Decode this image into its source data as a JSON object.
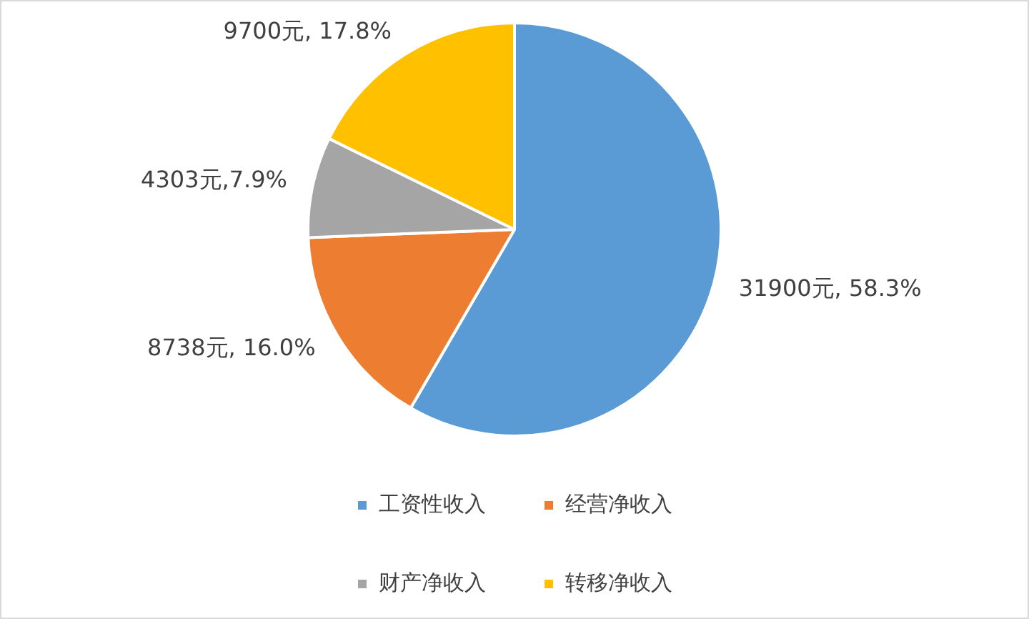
{
  "chart_data": {
    "type": "pie",
    "categories": [
      "工资性收入",
      "经营净收入",
      "财产净收入",
      "转移净收入"
    ],
    "values": [
      31900,
      8738,
      4303,
      9700
    ],
    "colors": [
      "#5b9bd5",
      "#ed7d31",
      "#a5a5a5",
      "#ffc000"
    ],
    "value_labels": [
      "31900元, 58.3%",
      "8738元, 16.0%",
      "4303元,7.9%",
      "9700元, 17.8%"
    ],
    "legend": "bottom"
  }
}
